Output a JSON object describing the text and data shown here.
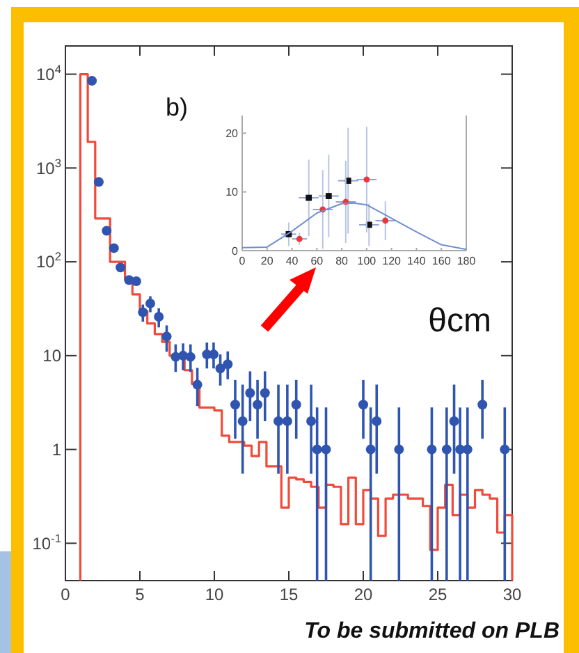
{
  "chart_data": [
    {
      "type": "histogram",
      "annotations": [
        "b)",
        "To be submitted on PLB"
      ],
      "bins": [
        1,
        1.5,
        2,
        2.5,
        3,
        3.5,
        4,
        4.5,
        5,
        5.5,
        6,
        6.5,
        7,
        7.5,
        8,
        8.5,
        9,
        9.5,
        10,
        10.5,
        11,
        11.5,
        12,
        12.5,
        13,
        13.5,
        14,
        14.5,
        15,
        15.5,
        16,
        16.5,
        17,
        17.5,
        18,
        18.5,
        19,
        19.5,
        20,
        20.5,
        21,
        21.5,
        22,
        22.5,
        23,
        23.5,
        24,
        24.5,
        25,
        25.5,
        26,
        26.5,
        27,
        27.5,
        28,
        28.5,
        29,
        29.5,
        30
      ],
      "series": [
        {
          "color": "#f04a3a",
          "values": [
            10000,
            1900,
            290,
            290,
            100,
            100,
            65,
            45,
            30,
            22,
            17,
            14,
            10,
            10,
            7,
            5,
            2.8,
            2.8,
            2.6,
            1.4,
            1.2,
            1.2,
            1.1,
            0.85,
            1.2,
            0.66,
            0.66,
            0.24,
            0.5,
            0.48,
            0.45,
            0.4,
            0.24,
            0.42,
            0.4,
            0.16,
            0.5,
            0.16,
            0.37,
            0.3,
            0.12,
            0.3,
            0.33,
            0.33,
            0.3,
            0.3,
            0.25,
            0.085,
            0.24,
            0.42,
            0.2,
            0.33,
            0.24,
            0.37,
            0.33,
            0.3,
            0.13,
            0.2
          ]
        },
        {
          "type": "scatter",
          "color": "#2f55b0",
          "x": [
            1.78,
            2.24,
            2.77,
            3.26,
            3.7,
            4.27,
            4.76,
            5.2,
            5.7,
            6.27,
            6.8,
            7.4,
            7.9,
            8.4,
            8.86,
            9.5,
            9.95,
            10.4,
            10.9,
            11.4,
            11.9,
            12.4,
            12.9,
            13.4,
            14.3,
            14.9,
            15.5,
            16.5,
            16.9,
            17.5,
            20.0,
            20.5,
            20.9,
            22.4,
            24.6,
            25.6,
            26.1,
            26.5,
            27.0,
            28.0,
            29.5
          ],
          "values": [
            8500,
            710,
            214,
            140,
            87,
            64,
            62,
            29,
            36,
            26,
            16,
            9.7,
            10,
            9.7,
            4.9,
            10.3,
            10.3,
            7.3,
            8.1,
            3,
            2,
            4,
            3,
            4,
            2,
            2,
            3,
            2,
            1,
            1,
            3,
            1,
            2,
            1,
            1,
            1,
            2,
            1,
            1,
            3,
            1
          ],
          "errors": [
            null,
            null,
            null,
            null,
            null,
            null,
            null,
            [
              23,
              35
            ],
            [
              29,
              43
            ],
            [
              20,
              32
            ],
            [
              11,
              21
            ],
            [
              6.7,
              13.2
            ],
            [
              7,
              13.5
            ],
            [
              6.7,
              13.2
            ],
            [
              2.9,
              7.4
            ],
            [
              7.3,
              13.8
            ],
            [
              7.3,
              13.8
            ],
            [
              4.8,
              10.3
            ],
            [
              5.6,
              11.1
            ],
            [
              1.3,
              5.5
            ],
            [
              0.55,
              4.9
            ],
            [
              2,
              6.8
            ],
            [
              1.3,
              5.5
            ],
            [
              2,
              6.8
            ],
            [
              0.55,
              4.9
            ],
            [
              0.55,
              4.9
            ],
            [
              1.3,
              5.5
            ],
            [
              0.55,
              4.9
            ],
            [
              0.04,
              2.8
            ],
            [
              0.04,
              2.8
            ],
            [
              1.3,
              5.5
            ],
            [
              0.04,
              2.8
            ],
            [
              0.55,
              4.9
            ],
            [
              0.04,
              2.8
            ],
            [
              0.04,
              2.8
            ],
            [
              0.04,
              2.8
            ],
            [
              0.55,
              4.9
            ],
            [
              0.04,
              2.8
            ],
            [
              0.04,
              2.8
            ],
            [
              1.3,
              5.5
            ],
            [
              0.04,
              2.8
            ]
          ]
        }
      ],
      "log": "y",
      "marker": "circle",
      "xlim": [
        0,
        30
      ],
      "xticks": [
        0,
        5,
        10,
        15,
        20,
        25,
        30
      ],
      "ylim": [
        0.04,
        20000
      ],
      "yticks": [
        {
          "value": 0.1,
          "label": "10$^{-1}$"
        },
        1,
        10,
        {
          "value": 100,
          "label": "10$^{2}$"
        },
        {
          "value": 1000,
          "label": "10$^{3}$"
        },
        {
          "value": 10000,
          "label": "10$^{4}$"
        }
      ]
    },
    {
      "type": "scatter",
      "xlabel": "θcm",
      "xlim": [
        0,
        180
      ],
      "xticks": [
        0,
        20,
        40,
        60,
        80,
        100,
        120,
        140,
        160,
        180
      ],
      "ylim": [
        0,
        23
      ],
      "yticks": [
        0,
        10,
        20
      ],
      "series": [
        {
          "marker": "square",
          "color": "#111111",
          "x": [
            37.4,
            53.5,
            69.5,
            85.1,
            101.9
          ],
          "values": [
            2.8,
            9,
            9.3,
            11.9,
            4.4
          ],
          "errors": [
            2,
            6.5,
            7,
            9,
            3.6
          ],
          "xerrors": [
            6,
            8,
            8,
            8,
            8
          ]
        },
        {
          "marker": "circle",
          "color": "#e8383a",
          "x": [
            46,
            64.7,
            83.2,
            100,
            115
          ],
          "values": [
            2,
            7,
            8.3,
            12.1,
            5.1
          ],
          "errors": [
            1,
            6.7,
            7,
            9,
            3.3
          ],
          "xerrors": [
            6,
            8,
            8,
            8,
            8
          ]
        },
        {
          "type": "line",
          "marker": "none",
          "color": "#6f8fd0",
          "x": [
            0,
            20,
            40,
            60,
            80,
            90,
            100,
            120,
            140,
            160,
            180
          ],
          "values": [
            0.5,
            0.6,
            3.3,
            6.4,
            8,
            8.1,
            7.8,
            5.5,
            3.2,
            1,
            0.2
          ]
        }
      ]
    }
  ]
}
